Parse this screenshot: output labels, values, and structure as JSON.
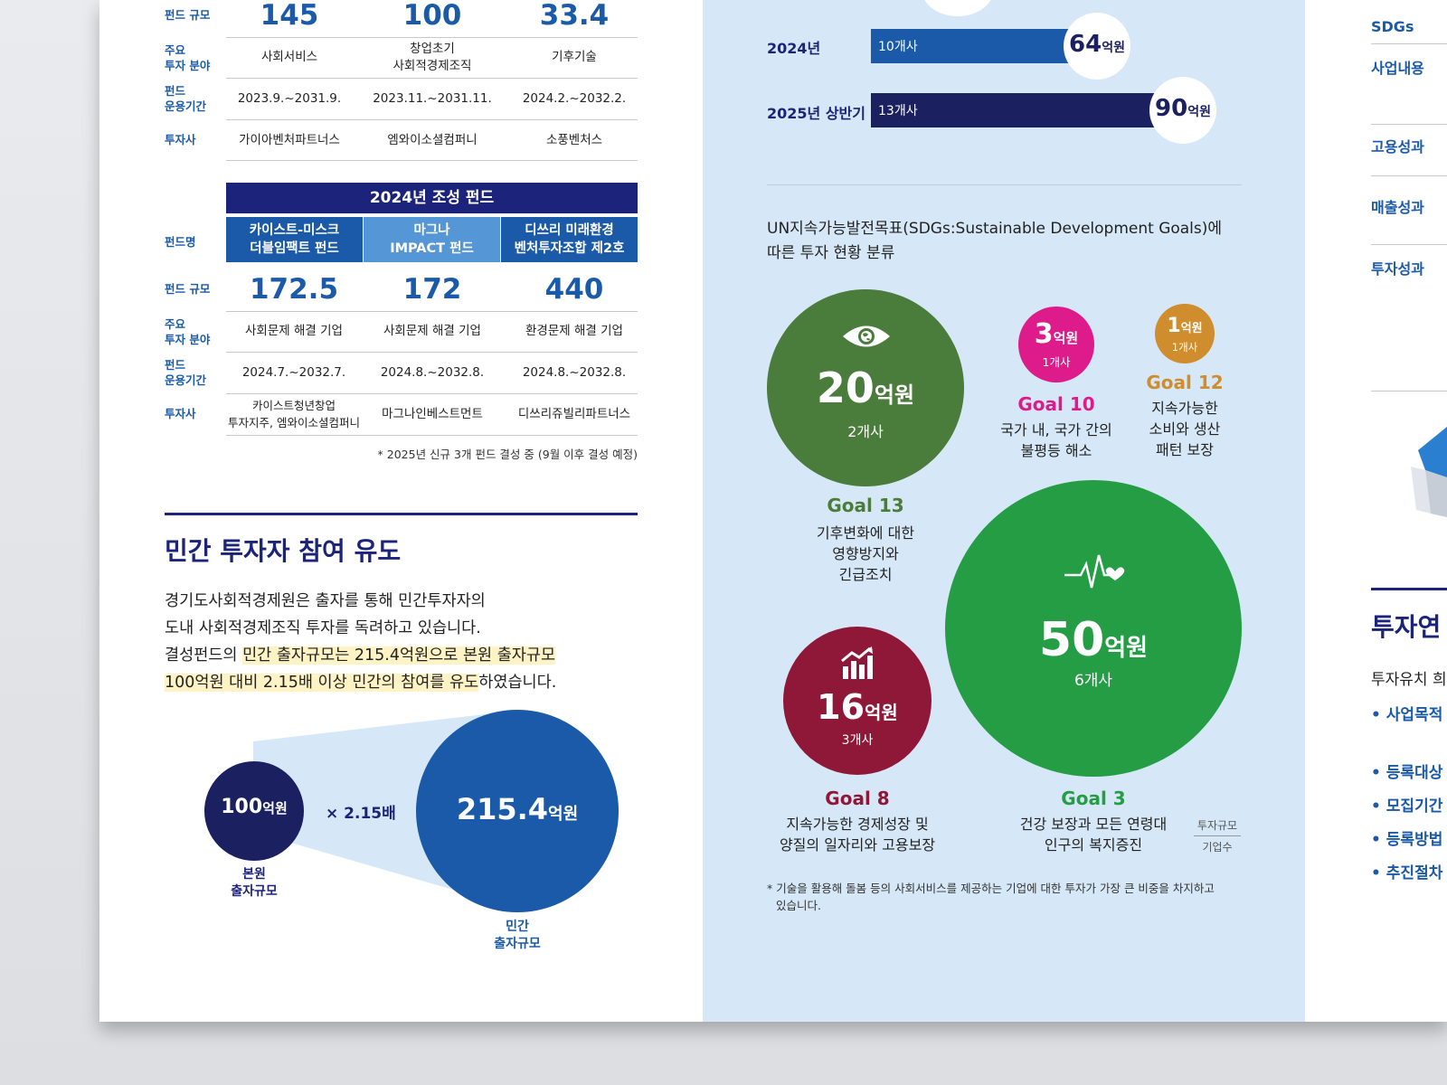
{
  "top_table": {
    "labels": {
      "size": "펀드 규모",
      "field": "주요\n투자 분야",
      "period": "펀드\n운용기간",
      "investor": "투자사"
    },
    "columns": [
      {
        "size": "145",
        "field": "사회서비스",
        "period": "2023.9.~2031.9.",
        "investor": "가이아벤처파트너스"
      },
      {
        "size": "100",
        "field": "창업초기\n사회적경제조직",
        "period": "2023.11.~2031.11.",
        "investor": "엠와이소셜컴퍼니"
      },
      {
        "size": "33.4",
        "field": "기후기술",
        "period": "2024.2.~2032.2.",
        "investor": "소풍벤처스"
      }
    ]
  },
  "fund2024": {
    "title": "2024년 조성 펀드",
    "labels": {
      "name": "펀드명",
      "size": "펀드 규모",
      "field": "주요\n투자 분야",
      "period": "펀드\n운용기간",
      "investor": "투자사"
    },
    "columns": [
      {
        "name": "카이스트-미스크\n더블임팩트 펀드",
        "size": "172.5",
        "field": "사회문제 해결 기업",
        "period": "2024.7.~2032.7.",
        "investor": "카이스트청년창업\n투자지주, 엠와이소셜컴퍼니",
        "head_color": "#1a5aa8"
      },
      {
        "name": "마그나\nIMPACT 펀드",
        "size": "172",
        "field": "사회문제 해결 기업",
        "period": "2024.8.~2032.8.",
        "investor": "마그나인베스트먼트",
        "head_color": "#5596d6"
      },
      {
        "name": "디쓰리 미래환경\n벤처투자조합 제2호",
        "size": "440",
        "field": "환경문제 해결 기업",
        "period": "2024.8.~2032.8.",
        "investor": "디쓰리쥬빌리파트너스",
        "head_color": "#1a5aa8"
      }
    ],
    "footnote": "* 2025년 신규 3개 펀드 결성 중 (9월 이후 결성 예정)"
  },
  "private_section": {
    "heading": "민간 투자자 참여 유도",
    "para_line1": "경기도사회적경제원은 출자를 통해 민간투자자의",
    "para_line2": "도내 사회적경제조직 투자를 독려하고 있습니다.",
    "para_line3_pre": "결성펀드의 ",
    "para_line3_hl": "민간 출자규모는 215.4억원으로 본원 출자규모",
    "para_line4_hl": "100억원 대비 2.15배 이상 민간의 참여를 유도",
    "para_line4_post": "하였습니다.",
    "base_value": "100",
    "base_unit": "억원",
    "base_label": "본원\n출자규모",
    "multiplier": "× 2.15배",
    "private_value": "215.4",
    "private_unit": "억원",
    "private_label": "민간\n출자규모"
  },
  "bars": [
    {
      "year": "2024년",
      "companies": "10개사",
      "amount": "64",
      "unit": "억원",
      "fill": 0.711,
      "color": "#1a5aa8"
    },
    {
      "year": "2025년 상반기",
      "companies": "13개사",
      "amount": "90",
      "unit": "억원",
      "fill": 1.0,
      "color": "#1b2060"
    }
  ],
  "sdg_section": {
    "heading_line1": "UN지속가능발전목표(SDGs:Sustainable Development Goals)에",
    "heading_line2": "따른 투자 현황 분류",
    "goals": [
      {
        "goal": "Goal 13",
        "desc": "기후변화에 대한\n영향방지와\n긴급조치",
        "amount": "20",
        "unit": "억원",
        "companies": "2개사",
        "color": "#4a7c3b",
        "icon": "eye-globe-icon"
      },
      {
        "goal": "Goal 10",
        "desc": "국가 내, 국가 간의\n불평등 해소",
        "amount": "3",
        "unit": "억원",
        "companies": "1개사",
        "color": "#dd1b8a",
        "icon": ""
      },
      {
        "goal": "Goal 12",
        "desc": "지속가능한\n소비와 생산\n패턴 보장",
        "amount": "1",
        "unit": "억원",
        "companies": "1개사",
        "color": "#cf8d2e",
        "icon": ""
      },
      {
        "goal": "Goal 8",
        "desc": "지속가능한 경제성장 및\n양질의 일자리와 고용보장",
        "amount": "16",
        "unit": "억원",
        "companies": "3개사",
        "color": "#8f1838",
        "icon": "growth-chart-icon"
      },
      {
        "goal": "Goal 3",
        "desc": "건강 보장과 모든 연령대\n인구의 복지증진",
        "amount": "50",
        "unit": "억원",
        "companies": "6개사",
        "color": "#249d45",
        "icon": "heartbeat-icon"
      }
    ],
    "legend_top": "투자규모",
    "legend_bottom": "기업수",
    "footnote_line1": "* 기술을 활용해 돌봄 등의 사회서비스를 제공하는 기업에 대한 투자가 가장 큰 비중을 차지하고",
    "footnote_line2": "있습니다."
  },
  "right_page": {
    "labels": [
      "SDGs",
      "사업내용",
      "고용성과",
      "매출성과",
      "투자성과"
    ],
    "heading": "투자연",
    "sub": "투자유치 희",
    "bullets": [
      "• 사업목적",
      "• 등록대상",
      "• 모집기간",
      "• 등록방법",
      "• 추진절차"
    ]
  }
}
